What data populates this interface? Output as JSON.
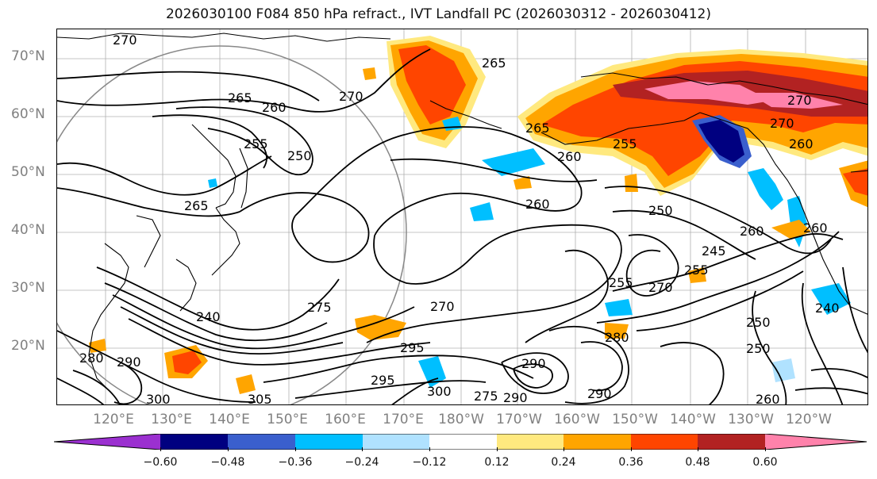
{
  "title": "2026030100 F084 850 hPa refract., IVT Landfall PC (2026030312 - 2026030412)",
  "lat_labels": [
    "70°N",
    "60°N",
    "50°N",
    "40°N",
    "30°N",
    "20°N"
  ],
  "lon_labels": [
    "120°E",
    "130°E",
    "140°E",
    "150°E",
    "160°E",
    "170°E",
    "180°W",
    "170°W",
    "160°W",
    "150°W",
    "140°W",
    "130°W",
    "120°W"
  ],
  "colorbar": {
    "ticks": [
      "−0.60",
      "−0.48",
      "−0.36",
      "−0.24",
      "−0.12",
      "0.12",
      "0.24",
      "0.36",
      "0.48",
      "0.60"
    ],
    "colors": [
      "#9b30d0",
      "#000080",
      "#3a5fcd",
      "#00bfff",
      "#b0e2ff",
      "#ffffff",
      "#ffe97f",
      "#ffa500",
      "#ff4500",
      "#b22222",
      "#ff82ab"
    ]
  },
  "contour_labels": [
    "270",
    "265",
    "260",
    "270",
    "265",
    "255",
    "250",
    "265",
    "255",
    "260",
    "270",
    "260",
    "265",
    "270",
    "260",
    "250",
    "260",
    "245",
    "255",
    "270",
    "255",
    "260",
    "275",
    "270",
    "250",
    "240",
    "295",
    "290",
    "280",
    "300",
    "305",
    "295",
    "300",
    "290",
    "275",
    "290",
    "290",
    "280",
    "260",
    "250",
    "240"
  ],
  "palette": {
    "shade_low": "#ffe97f",
    "shade_mid": "#ffa500",
    "shade_high": "#ff4500",
    "shade_vhigh": "#b22222",
    "shade_top": "#ff82ab",
    "neg_light": "#b0e2ff",
    "neg_mid": "#00bfff",
    "neg_strong": "#000080"
  }
}
